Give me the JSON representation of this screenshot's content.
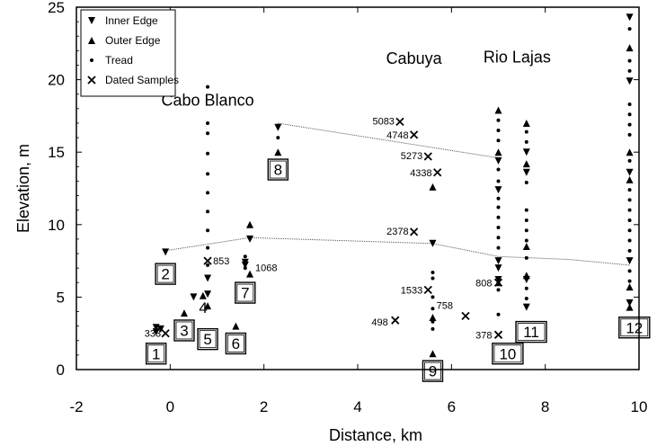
{
  "chart_data": {
    "type": "scatter",
    "xlabel": "Distance, km",
    "ylabel": "Elevation, m",
    "xlim": [
      -2,
      10
    ],
    "ylim": [
      0,
      25
    ],
    "xticks": [
      -2,
      0,
      2,
      4,
      6,
      8,
      10
    ],
    "yticks": [
      0,
      5,
      10,
      15,
      20,
      25
    ],
    "legend": {
      "placement": "top-left",
      "entries": [
        {
          "symbol": "down-triangle",
          "label": "Inner Edge"
        },
        {
          "symbol": "up-triangle",
          "label": "Outer Edge"
        },
        {
          "symbol": "dot",
          "label": "Tread"
        },
        {
          "symbol": "x",
          "label": "Dated Samples"
        }
      ]
    },
    "region_labels": [
      {
        "text": "Cabo Blanco",
        "x": 0.8,
        "y": 18.2
      },
      {
        "text": "Cabuya",
        "x": 5.2,
        "y": 21.1
      },
      {
        "text": "Rio Lajas",
        "x": 7.4,
        "y": 21.2
      }
    ],
    "series": [
      {
        "name": "Inner Edge",
        "symbol": "down-triangle",
        "points": [
          [
            -0.3,
            2.6
          ],
          [
            -0.3,
            2.9
          ],
          [
            -0.2,
            2.8
          ],
          [
            -0.1,
            8.1
          ],
          [
            0.5,
            5.0
          ],
          [
            0.8,
            5.2
          ],
          [
            0.8,
            6.3
          ],
          [
            1.7,
            9.0
          ],
          [
            1.6,
            7.4
          ],
          [
            1.6,
            7.2
          ],
          [
            2.3,
            16.7
          ],
          [
            5.6,
            8.7
          ],
          [
            7.0,
            14.4
          ],
          [
            7.0,
            12.4
          ],
          [
            7.0,
            7.5
          ],
          [
            7.0,
            7.0
          ],
          [
            7.0,
            6.2
          ],
          [
            7.6,
            15.0
          ],
          [
            7.6,
            13.6
          ],
          [
            7.6,
            6.2
          ],
          [
            7.6,
            4.3
          ],
          [
            9.8,
            24.3
          ],
          [
            9.8,
            19.9
          ],
          [
            9.8,
            13.6
          ],
          [
            9.8,
            7.5
          ],
          [
            9.8,
            4.6
          ]
        ]
      },
      {
        "name": "Outer Edge",
        "symbol": "up-triangle",
        "points": [
          [
            0.3,
            3.9
          ],
          [
            0.7,
            5.1
          ],
          [
            0.8,
            4.4
          ],
          [
            1.4,
            3.0
          ],
          [
            1.7,
            10.0
          ],
          [
            1.7,
            6.6
          ],
          [
            2.3,
            15.0
          ],
          [
            5.6,
            12.6
          ],
          [
            5.6,
            3.6
          ],
          [
            5.6,
            1.1
          ],
          [
            7.0,
            17.9
          ],
          [
            7.0,
            15.0
          ],
          [
            7.0,
            6.0
          ],
          [
            7.6,
            17.0
          ],
          [
            7.6,
            14.2
          ],
          [
            7.6,
            8.5
          ],
          [
            7.6,
            6.5
          ],
          [
            9.8,
            22.2
          ],
          [
            9.8,
            15.0
          ],
          [
            9.8,
            13.1
          ],
          [
            9.8,
            5.7
          ],
          [
            9.8,
            4.3
          ]
        ]
      },
      {
        "name": "Tread",
        "symbol": "dot",
        "points": [
          [
            0.8,
            19.5
          ],
          [
            0.8,
            17.0
          ],
          [
            0.8,
            16.3
          ],
          [
            0.8,
            14.9
          ],
          [
            0.8,
            13.5
          ],
          [
            0.8,
            12.2
          ],
          [
            0.8,
            10.9
          ],
          [
            0.8,
            9.6
          ],
          [
            0.8,
            8.4
          ],
          [
            0.8,
            7.2
          ],
          [
            1.6,
            7.8
          ],
          [
            1.6,
            7.0
          ],
          [
            2.3,
            16.0
          ],
          [
            5.6,
            6.7
          ],
          [
            5.6,
            6.3
          ],
          [
            5.6,
            5.0
          ],
          [
            5.6,
            4.2
          ],
          [
            5.6,
            3.3
          ],
          [
            5.6,
            2.8
          ],
          [
            7.0,
            17.2
          ],
          [
            7.0,
            16.5
          ],
          [
            7.0,
            15.8
          ],
          [
            7.0,
            13.8
          ],
          [
            7.0,
            13.0
          ],
          [
            7.0,
            11.8
          ],
          [
            7.0,
            11.2
          ],
          [
            7.0,
            10.5
          ],
          [
            7.0,
            9.8
          ],
          [
            7.0,
            9.1
          ],
          [
            7.0,
            8.4
          ],
          [
            7.0,
            5.5
          ],
          [
            7.0,
            3.8
          ],
          [
            7.6,
            16.4
          ],
          [
            7.6,
            15.7
          ],
          [
            7.6,
            12.9
          ],
          [
            7.6,
            11.0
          ],
          [
            7.6,
            10.3
          ],
          [
            7.6,
            9.6
          ],
          [
            7.6,
            8.9
          ],
          [
            7.6,
            7.7
          ],
          [
            7.6,
            5.6
          ],
          [
            7.6,
            4.9
          ],
          [
            9.8,
            23.5
          ],
          [
            9.8,
            21.3
          ],
          [
            9.8,
            20.6
          ],
          [
            9.8,
            18.3
          ],
          [
            9.8,
            17.6
          ],
          [
            9.8,
            16.9
          ],
          [
            9.8,
            16.2
          ],
          [
            9.8,
            14.4
          ],
          [
            9.8,
            12.4
          ],
          [
            9.8,
            11.7
          ],
          [
            9.8,
            11.0
          ],
          [
            9.8,
            10.3
          ],
          [
            9.8,
            9.6
          ],
          [
            9.8,
            8.9
          ],
          [
            9.8,
            8.2
          ],
          [
            9.8,
            6.8
          ],
          [
            9.8,
            6.1
          ]
        ]
      },
      {
        "name": "Dated Samples",
        "symbol": "x",
        "points": [
          {
            "x": -0.1,
            "y": 2.5,
            "label": "333",
            "anchor": "end",
            "dx": -5,
            "dy": 4
          },
          {
            "x": 0.8,
            "y": 7.5,
            "label": "853",
            "anchor": "start",
            "dx": 6,
            "dy": 4
          },
          {
            "x": 4.9,
            "y": 17.1,
            "label": "5083",
            "anchor": "end",
            "dx": -6,
            "dy": 3
          },
          {
            "x": 5.2,
            "y": 16.2,
            "label": "4748",
            "anchor": "end",
            "dx": -6,
            "dy": 4
          },
          {
            "x": 5.5,
            "y": 14.7,
            "label": "5273",
            "anchor": "end",
            "dx": -6,
            "dy": 3
          },
          {
            "x": 5.7,
            "y": 13.6,
            "label": "4338",
            "anchor": "end",
            "dx": -6,
            "dy": 4
          },
          {
            "x": 5.2,
            "y": 9.5,
            "label": "2378",
            "anchor": "end",
            "dx": -6,
            "dy": 3
          },
          {
            "x": 5.5,
            "y": 5.5,
            "label": "1533",
            "anchor": "end",
            "dx": -6,
            "dy": 4
          },
          {
            "x": 4.8,
            "y": 3.4,
            "label": "498",
            "anchor": "end",
            "dx": -8,
            "dy": 6
          },
          {
            "x": 6.3,
            "y": 3.7,
            "label": "758",
            "anchor": "end",
            "dx": -14,
            "dy": -8
          },
          {
            "x": 7.0,
            "y": 6.0,
            "label": "808",
            "anchor": "end",
            "dx": -7,
            "dy": 4
          },
          {
            "x": 7.0,
            "y": 2.4,
            "label": "378",
            "anchor": "end",
            "dx": -7,
            "dy": 4
          }
        ]
      }
    ],
    "point_labels": [
      {
        "text": "1068",
        "x": 1.7,
        "y": 6.8
      },
      {
        "text": "4",
        "x": 0.5,
        "y": 3.9
      }
    ],
    "correlation_lines": [
      {
        "points": [
          [
            2.3,
            17.0
          ],
          [
            7.0,
            14.6
          ]
        ]
      },
      {
        "points": [
          [
            -0.1,
            8.2
          ],
          [
            1.7,
            9.1
          ],
          [
            5.6,
            8.7
          ],
          [
            7.0,
            7.8
          ],
          [
            8.5,
            7.6
          ],
          [
            9.8,
            7.2
          ]
        ]
      }
    ],
    "terrace_boxes": [
      {
        "label": "1",
        "x": -0.3,
        "y": 1.1
      },
      {
        "label": "2",
        "x": -0.1,
        "y": 6.6
      },
      {
        "label": "3",
        "x": 0.3,
        "y": 2.7
      },
      {
        "label": "5",
        "x": 0.8,
        "y": 2.1
      },
      {
        "label": "6",
        "x": 1.4,
        "y": 1.8
      },
      {
        "label": "7",
        "x": 1.6,
        "y": 5.3
      },
      {
        "label": "8",
        "x": 2.3,
        "y": 13.8
      },
      {
        "label": "9",
        "x": 5.6,
        "y": -0.1
      },
      {
        "label": "10",
        "x": 7.2,
        "y": 1.1
      },
      {
        "label": "11",
        "x": 7.7,
        "y": 2.6
      },
      {
        "label": "12",
        "x": 9.9,
        "y": 2.9
      }
    ]
  }
}
